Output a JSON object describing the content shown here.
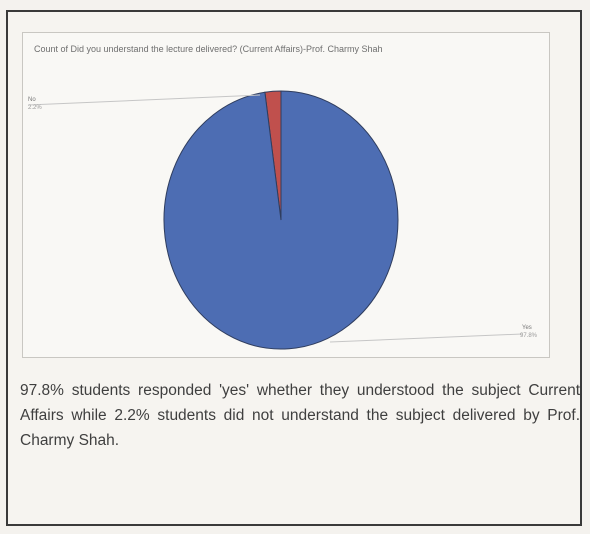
{
  "chart_data": {
    "type": "pie",
    "title": "Count of Did you understand the lecture delivered? (Current Affairs)-Prof. Charmy Shah",
    "slices": [
      {
        "label": "Yes",
        "value": 97.8,
        "color": "#4d6db3"
      },
      {
        "label": "No",
        "value": 2.2,
        "color": "#c0504d"
      }
    ],
    "data_labels": {
      "no": "No",
      "no_pct": "2.2%",
      "yes": "Yes",
      "yes_pct": "97.8%"
    }
  },
  "caption": "97.8% students responded 'yes' whether they understood the subject Current Affairs while 2.2% students did not understand the subject delivered by Prof. Charmy Shah."
}
